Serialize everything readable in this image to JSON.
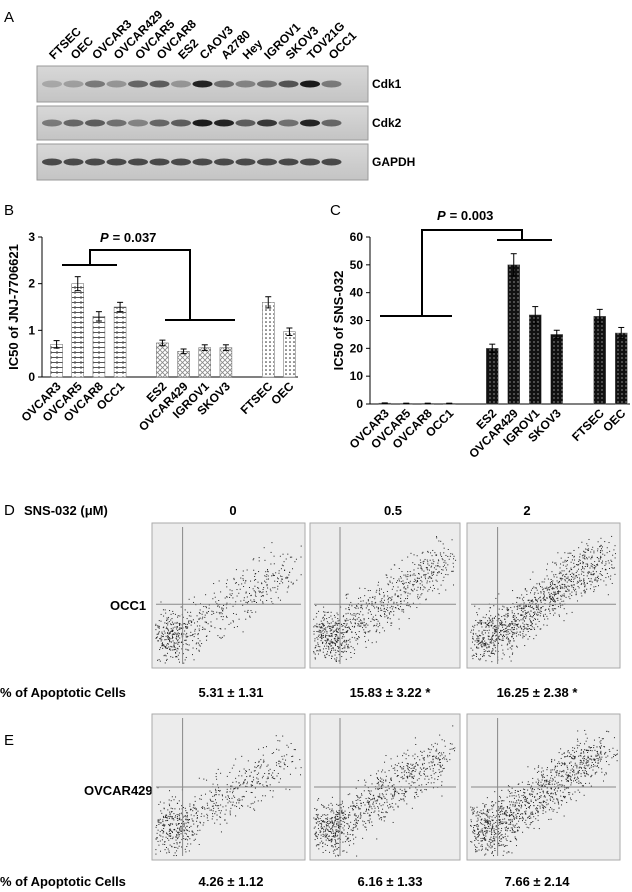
{
  "panel_a": {
    "label": "A",
    "cell_lines": [
      "FTSEC",
      "OEC",
      "OVCAR3",
      "OVCAR429",
      "OVCAR5",
      "OVCAR8",
      "ES2",
      "CAOV3",
      "A2780",
      "Hey",
      "IGROV1",
      "SKOV3",
      "TOV21G",
      "OCC1"
    ],
    "proteins": [
      "Cdk1",
      "Cdk2",
      "GAPDH"
    ]
  },
  "chart_data": [
    {
      "type": "bar",
      "panel": "B",
      "y_label": "IC50 of JNJ-7706621",
      "annotation": {
        "symbol": "P",
        "text": "= 0.037"
      },
      "categories": [
        "OVCAR3",
        "OVCAR5",
        "OVCAR8",
        "OCC1",
        null,
        "ES2",
        "OVCAR429",
        "IGROV1",
        "SKOV3",
        null,
        "FTSEC",
        "OEC"
      ],
      "values": [
        0.7,
        2.0,
        1.3,
        1.5,
        null,
        0.73,
        0.55,
        0.63,
        0.63,
        null,
        1.6,
        0.97
      ],
      "errors": [
        0.08,
        0.15,
        0.1,
        0.1,
        null,
        0.06,
        0.05,
        0.06,
        0.06,
        null,
        0.12,
        0.08
      ],
      "patterns": [
        "plus",
        "plus",
        "plus",
        "plus",
        null,
        "cross",
        "cross",
        "cross",
        "cross",
        null,
        "dots",
        "dots"
      ],
      "ylim": [
        0,
        3
      ],
      "yticks": [
        0,
        1,
        2,
        3
      ]
    },
    {
      "type": "bar",
      "panel": "C",
      "y_label": "IC50 of SNS-032",
      "annotation": {
        "symbol": "P",
        "text": "= 0.003"
      },
      "categories": [
        "OVCAR3",
        "OVCAR5",
        "OVCAR8",
        "OCC1",
        null,
        "ES2",
        "OVCAR429",
        "IGROV1",
        "SKOV3",
        null,
        "FTSEC",
        "OEC"
      ],
      "values": [
        0.3,
        0.2,
        0.2,
        0.2,
        null,
        20,
        50,
        32,
        25,
        null,
        31.5,
        25.5
      ],
      "errors": [
        0.1,
        0.1,
        0.1,
        0.1,
        null,
        1.5,
        4,
        3,
        1.5,
        null,
        2.5,
        2
      ],
      "patterns": [
        "darkdots",
        "darkdots",
        "darkdots",
        "darkdots",
        null,
        "darkdots",
        "darkdots",
        "darkdots",
        "darkdots",
        null,
        "darkdots",
        "darkdots"
      ],
      "ylim": [
        0,
        60
      ],
      "yticks": [
        0,
        10,
        20,
        30,
        40,
        50,
        60
      ]
    }
  ],
  "panel_d": {
    "label": "D",
    "treatment_label": "SNS-032 (μM)",
    "doses": [
      0,
      0.5,
      2
    ],
    "cell_line": "OCC1",
    "row_label": "% of Apoptotic Cells",
    "apoptotic": [
      "5.31 ± 1.31",
      "15.83 ± 3.22 *",
      "16.25 ± 2.38 *"
    ]
  },
  "panel_e": {
    "label": "E",
    "cell_line": "OVCAR429",
    "row_label": "% of Apoptotic Cells",
    "apoptotic": [
      "4.26 ± 1.12",
      "6.16 ± 1.33",
      "7.66 ± 2.14"
    ]
  }
}
